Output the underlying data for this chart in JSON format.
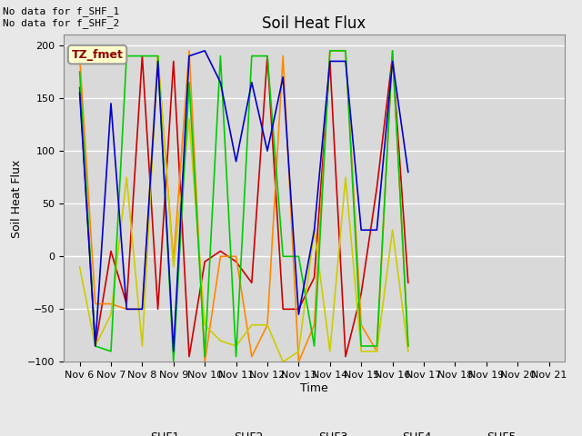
{
  "title": "Soil Heat Flux",
  "xlabel": "Time",
  "ylabel": "Soil Heat Flux",
  "annotation_text": "No data for f_SHF_1\nNo data for f_SHF_2",
  "legend_label": "TZ_fmet",
  "ylim": [
    -100,
    210
  ],
  "bg_color": "#d9d9d9",
  "fig_color": "#e8e8e8",
  "series_colors": {
    "SHF1": "#cc0000",
    "SHF2": "#ff8800",
    "SHF3": "#cccc00",
    "SHF4": "#00cc00",
    "SHF5": "#0000cc"
  },
  "x_tick_labels": [
    "Nov 6",
    "Nov 7",
    "Nov 8",
    "Nov 9",
    "Nov 10",
    "Nov 11",
    "Nov 12",
    "Nov 13",
    "Nov 14",
    "Nov 15",
    "Nov 16",
    "Nov 17",
    "Nov 18",
    "Nov 19",
    "Nov 20",
    "Nov 21"
  ],
  "SHF1": [
    160,
    -85,
    5,
    -45,
    190,
    -50,
    185,
    -95,
    -5,
    5,
    -5,
    -25,
    190,
    -50,
    -50,
    -20,
    185,
    -95,
    -35,
    65,
    190,
    -25
  ],
  "SHF2": [
    190,
    -45,
    -45,
    -50,
    -50,
    190,
    -5,
    195,
    -100,
    0,
    0,
    -95,
    -65,
    190,
    -100,
    -65,
    195,
    195,
    -65,
    -90,
    195,
    -85
  ],
  "SHF3": [
    -10,
    -85,
    -55,
    75,
    -85,
    190,
    -10,
    130,
    -65,
    -80,
    -85,
    -65,
    -65,
    -100,
    -90,
    25,
    -90,
    75,
    -90,
    -90,
    25,
    -90
  ],
  "SHF4": [
    175,
    -85,
    -90,
    190,
    190,
    190,
    -100,
    165,
    -95,
    190,
    -95,
    190,
    190,
    0,
    0,
    -85,
    195,
    195,
    -85,
    -85,
    195,
    -85
  ],
  "SHF5": [
    155,
    -85,
    145,
    -50,
    -50,
    185,
    -90,
    190,
    195,
    165,
    90,
    165,
    100,
    170,
    -55,
    25,
    185,
    185,
    25,
    25,
    185,
    80
  ],
  "x_values": [
    0,
    0.5,
    1,
    1.5,
    2,
    2.5,
    3,
    3.5,
    4,
    4.5,
    5,
    5.5,
    6,
    6.5,
    7,
    7.5,
    8,
    8.5,
    9,
    9.5,
    10,
    10.5
  ]
}
